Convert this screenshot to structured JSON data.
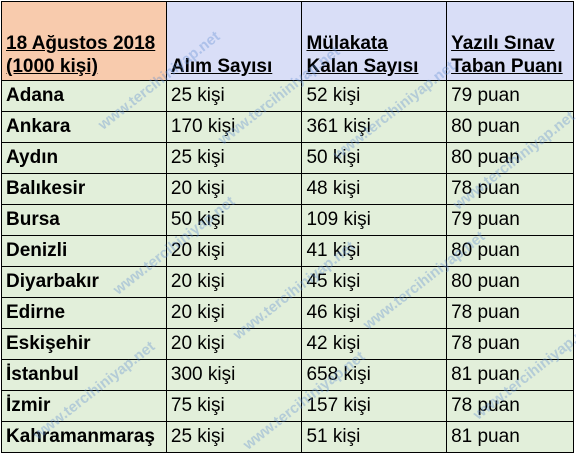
{
  "table": {
    "header": {
      "col1_line1": "18 Ağustos 2018",
      "col1_line2": "(1000 kişi)",
      "col2": "Alım Sayısı",
      "col3_line1": "Mülakata",
      "col3_line2": "Kalan Sayısı",
      "col4_line1": "Yazılı Sınav",
      "col4_line2": "Taban Puanı"
    },
    "rows": [
      {
        "city": "Adana",
        "alim": "25 kişi",
        "kalan": "52 kişi",
        "puan": "79 puan"
      },
      {
        "city": "Ankara",
        "alim": "170 kişi",
        "kalan": "361 kişi",
        "puan": "80 puan"
      },
      {
        "city": "Aydın",
        "alim": "25 kişi",
        "kalan": "50 kişi",
        "puan": "80 puan"
      },
      {
        "city": "Balıkesir",
        "alim": "20 kişi",
        "kalan": "48 kişi",
        "puan": "78 puan"
      },
      {
        "city": "Bursa",
        "alim": "50 kişi",
        "kalan": "109 kişi",
        "puan": "79 puan"
      },
      {
        "city": "Denizli",
        "alim": "20 kişi",
        "kalan": "41 kişi",
        "puan": "80 puan"
      },
      {
        "city": "Diyarbakır",
        "alim": "20 kişi",
        "kalan": "45 kişi",
        "puan": "80 puan"
      },
      {
        "city": "Edirne",
        "alim": "20 kişi",
        "kalan": "46 kişi",
        "puan": "78 puan"
      },
      {
        "city": "Eskişehir",
        "alim": "20 kişi",
        "kalan": "42 kişi",
        "puan": "78 puan"
      },
      {
        "city": "İstanbul",
        "alim": "300 kişi",
        "kalan": "658 kişi",
        "puan": "81 puan"
      },
      {
        "city": "İzmir",
        "alim": "75 kişi",
        "kalan": "157 kişi",
        "puan": "78 puan"
      },
      {
        "city": "Kahramanmaraş",
        "alim": "25 kişi",
        "kalan": "51 kişi",
        "puan": "81 puan"
      }
    ]
  },
  "watermark": "www.tercihiniyap.net"
}
